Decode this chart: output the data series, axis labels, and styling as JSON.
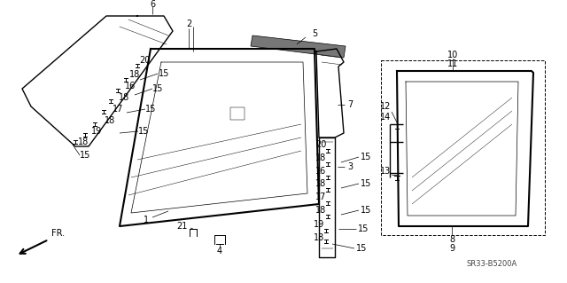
{
  "bg_color": "#ffffff",
  "line_color": "#000000",
  "fig_width": 6.4,
  "fig_height": 3.19,
  "dpi": 100,
  "diagram_code": "SR33-B5200A"
}
